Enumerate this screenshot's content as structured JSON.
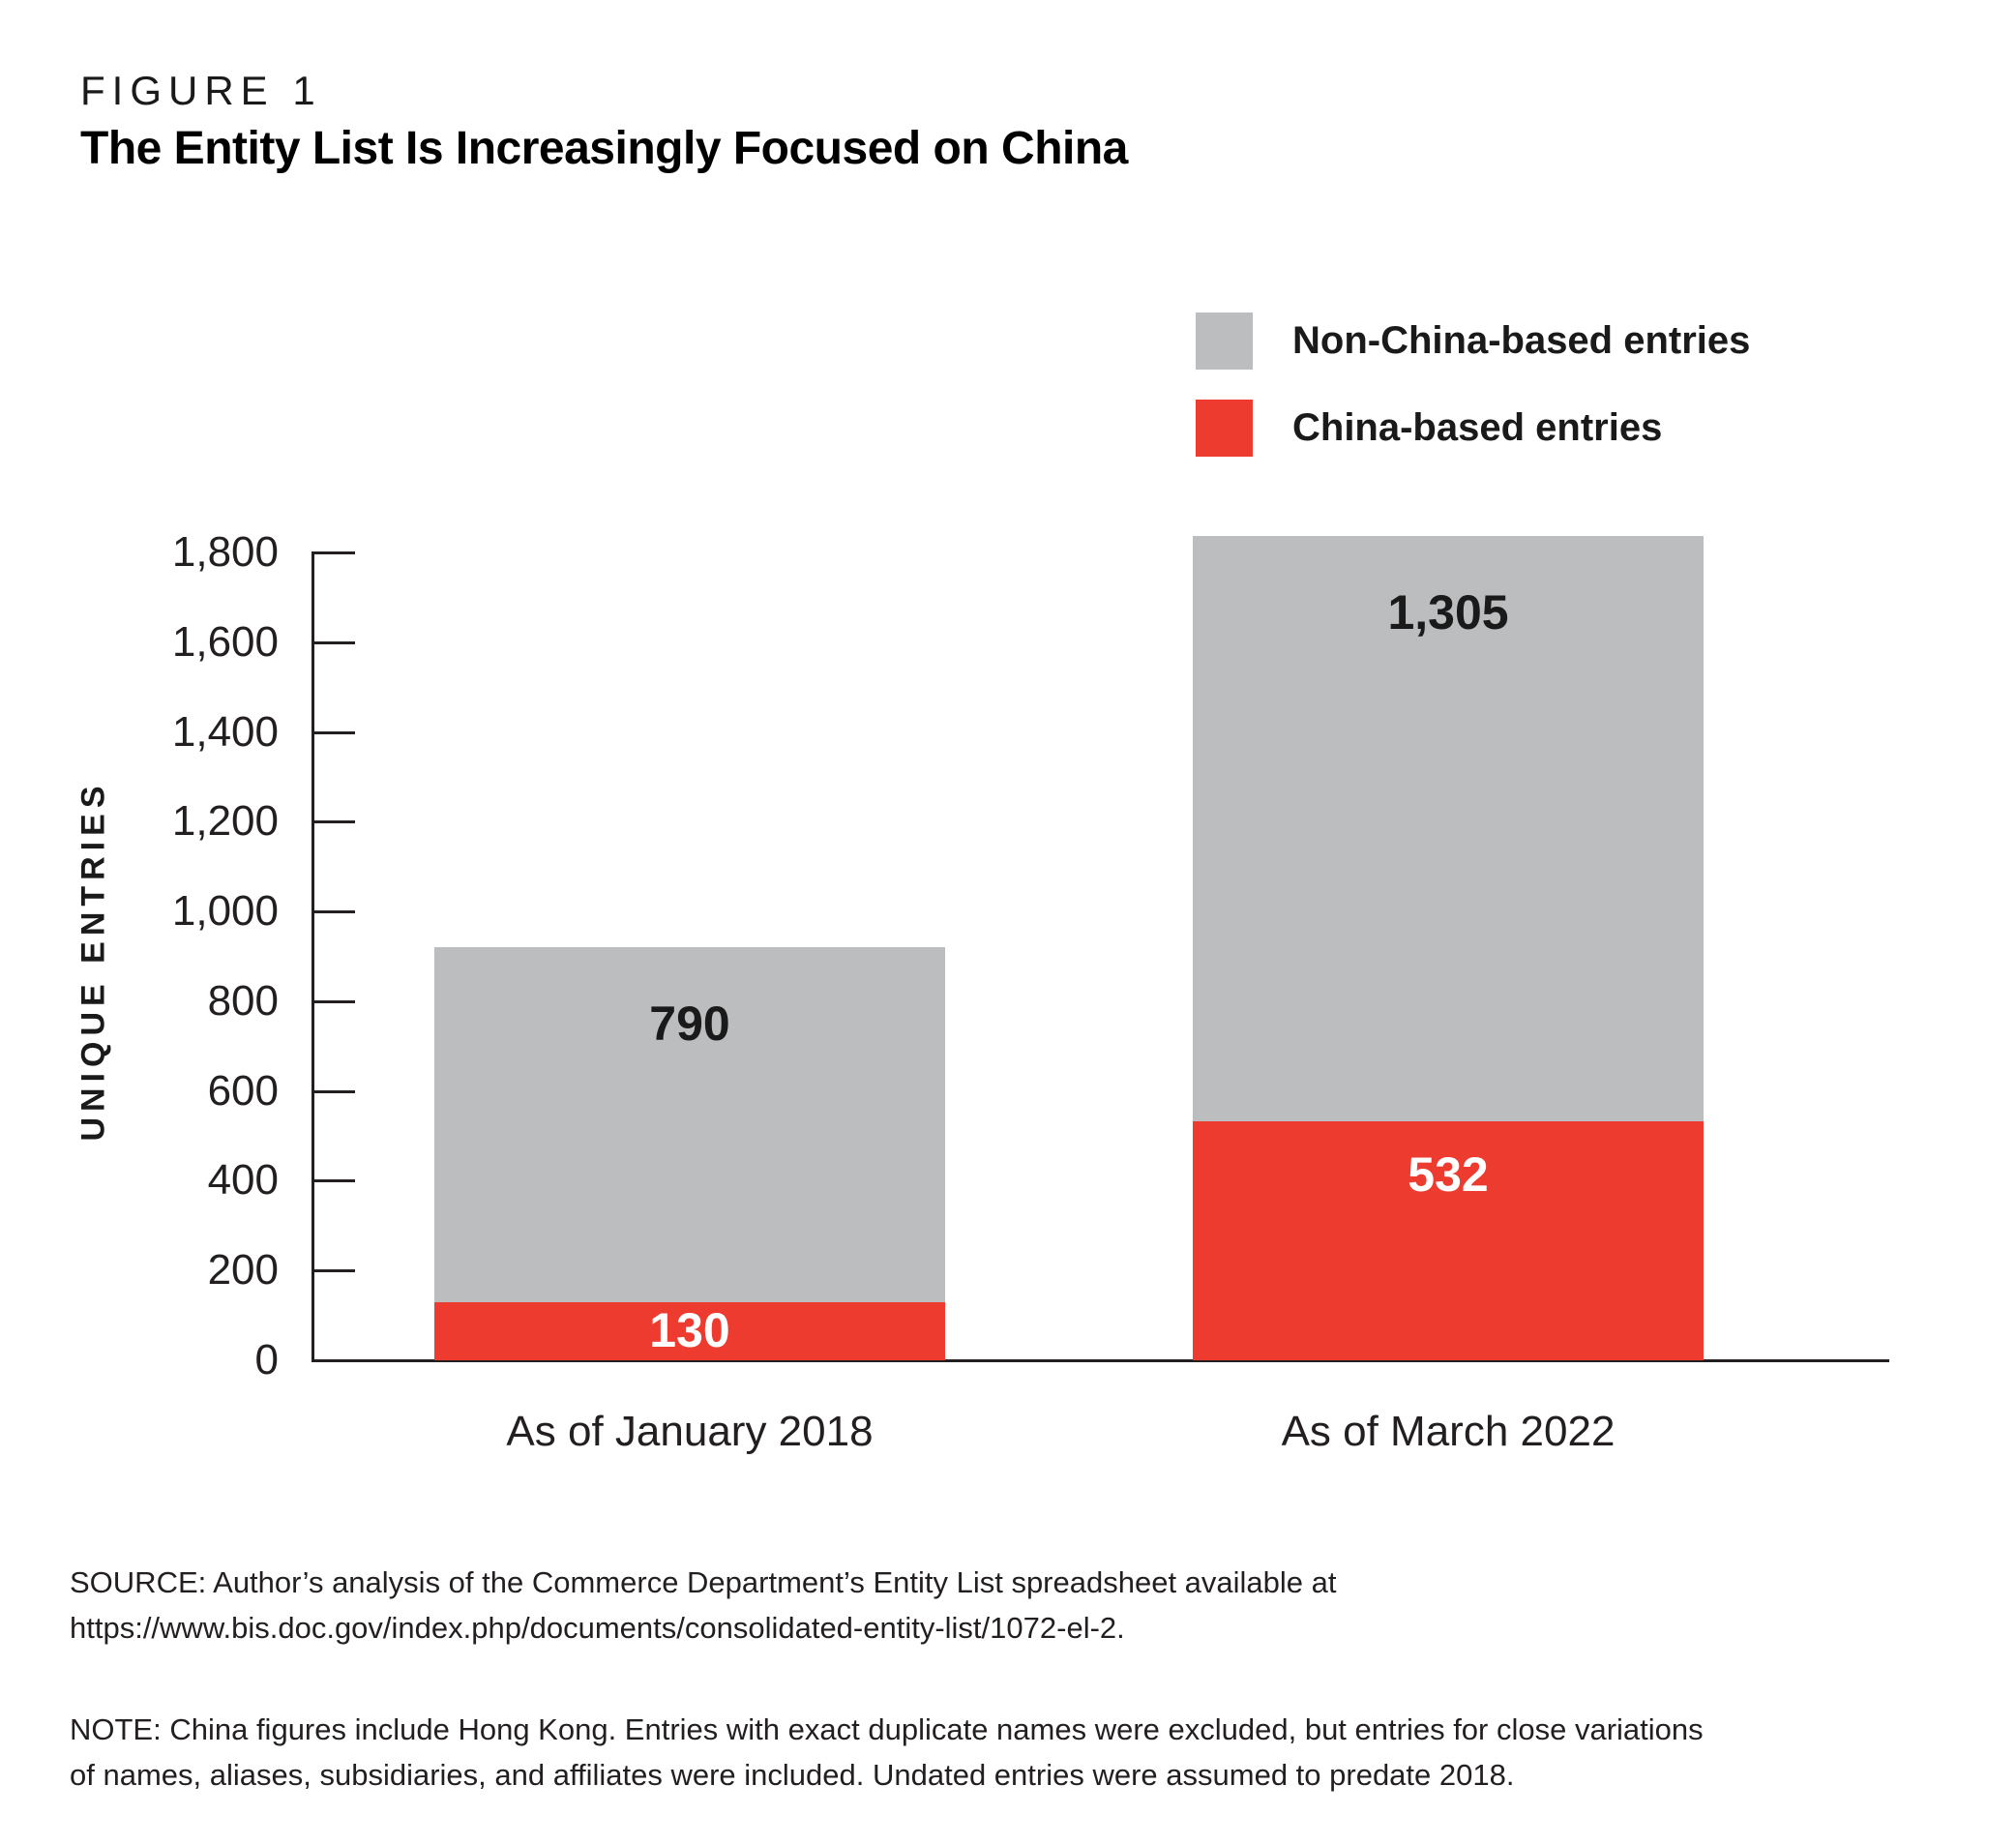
{
  "figure": {
    "kicker": "FIGURE 1"
  },
  "chart_data": {
    "type": "bar",
    "stacked": true,
    "title": "The Entity List Is Increasingly Focused on China",
    "categories": [
      "As of January 2018",
      "As of March 2022"
    ],
    "series": [
      {
        "name": "China-based entries",
        "color": "#ED3B2F",
        "text_color": "#FFFFFF",
        "values": [
          130,
          532
        ],
        "labels": [
          "130",
          "532"
        ]
      },
      {
        "name": "Non-China-based entries",
        "color": "#BCBDBF",
        "text_color": "#1A1A1A",
        "values": [
          790,
          1305
        ],
        "labels": [
          "790",
          "1,305"
        ]
      }
    ],
    "totals": [
      920,
      1837
    ],
    "xlabel": "",
    "ylabel": "UNIQUE ENTRIES",
    "ylim": [
      0,
      1800
    ],
    "ytick_interval": 200,
    "yticks": [
      "0",
      "200",
      "400",
      "600",
      "800",
      "1,000",
      "1,200",
      "1,400",
      "1,600",
      "1,800"
    ],
    "grid": false,
    "legend_position": "top-right"
  },
  "legend": {
    "items": [
      {
        "label": "Non-China-based entries",
        "color": "#BCBDBF"
      },
      {
        "label": "China-based entries",
        "color": "#ED3B2F"
      }
    ]
  },
  "source": {
    "lines": [
      "SOURCE: Author’s analysis of the Commerce Department’s Entity List spreadsheet available at",
      "https://www.bis.doc.gov/index.php/documents/consolidated-entity-list/1072-el-2."
    ]
  },
  "note": {
    "lines": [
      "NOTE: China figures include Hong Kong. Entries with exact duplicate names were excluded, but entries for close variations",
      "of names, aliases, subsidiaries, and affiliates were included. Undated entries were assumed to predate 2018."
    ]
  }
}
